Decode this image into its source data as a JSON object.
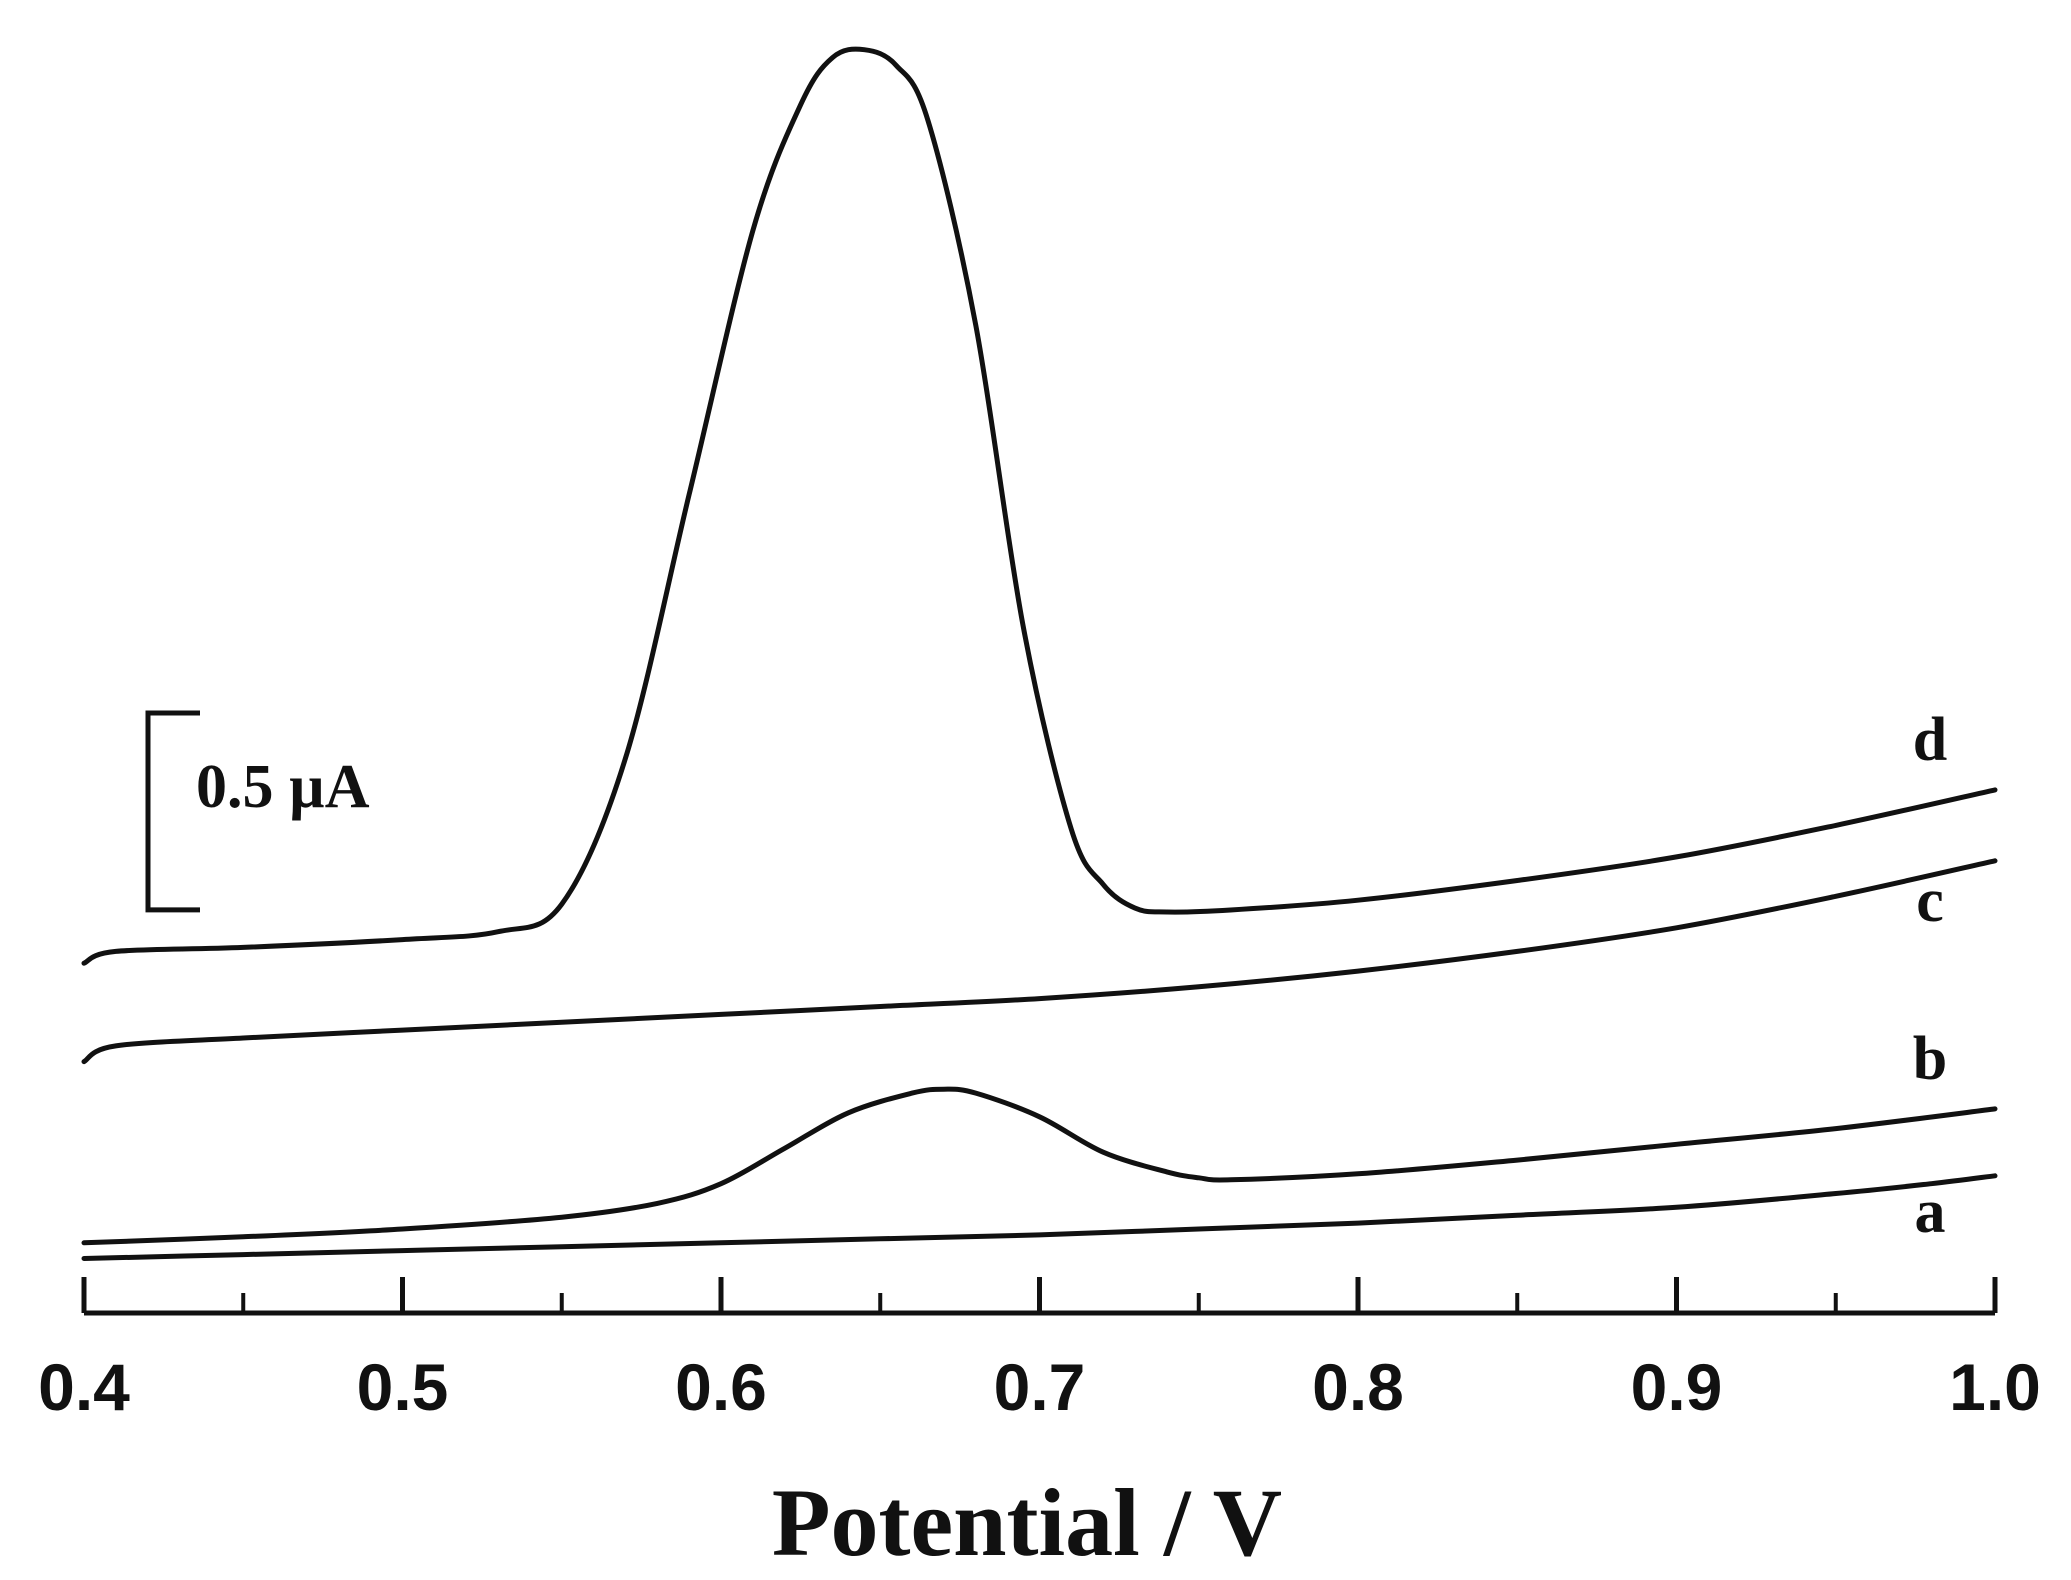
{
  "chart_data": {
    "type": "line",
    "xlabel": "Potential / V",
    "ylabel": "",
    "xlim": [
      0.4,
      1.0
    ],
    "x_ticks": [
      "0.4",
      "0.5",
      "0.6",
      "0.7",
      "0.8",
      "0.9",
      "1.0"
    ],
    "x_minor_ticks": [
      0.45,
      0.55,
      0.65,
      0.75,
      0.85,
      0.95
    ],
    "y_units": "µA (relative, offset curves)",
    "ylim": [
      0,
      3.2
    ],
    "grid": false,
    "legend": "none (inline curve labels at right end)",
    "scale_bar": {
      "value": 0.5,
      "label": "0.5 µA"
    },
    "series": [
      {
        "name": "a",
        "x": [
          0.4,
          0.45,
          0.5,
          0.55,
          0.6,
          0.65,
          0.7,
          0.75,
          0.8,
          0.85,
          0.9,
          0.95,
          0.98,
          1.0
        ],
        "y": [
          0.08,
          0.09,
          0.1,
          0.11,
          0.12,
          0.13,
          0.14,
          0.155,
          0.17,
          0.19,
          0.21,
          0.245,
          0.27,
          0.29
        ]
      },
      {
        "name": "b",
        "x": [
          0.4,
          0.45,
          0.5,
          0.55,
          0.58,
          0.6,
          0.62,
          0.64,
          0.66,
          0.67,
          0.68,
          0.7,
          0.72,
          0.74,
          0.75,
          0.76,
          0.8,
          0.85,
          0.9,
          0.95,
          1.0
        ],
        "y": [
          0.12,
          0.135,
          0.155,
          0.185,
          0.22,
          0.27,
          0.36,
          0.45,
          0.5,
          0.51,
          0.5,
          0.44,
          0.35,
          0.3,
          0.285,
          0.28,
          0.295,
          0.33,
          0.37,
          0.41,
          0.46
        ]
      },
      {
        "name": "c",
        "x": [
          0.4,
          0.41,
          0.45,
          0.5,
          0.55,
          0.6,
          0.65,
          0.7,
          0.75,
          0.8,
          0.85,
          0.9,
          0.95,
          1.0
        ],
        "y": [
          0.58,
          0.62,
          0.64,
          0.66,
          0.68,
          0.7,
          0.72,
          0.74,
          0.77,
          0.81,
          0.86,
          0.92,
          1.0,
          1.09
        ]
      },
      {
        "name": "d",
        "x": [
          0.4,
          0.41,
          0.45,
          0.5,
          0.53,
          0.55,
          0.57,
          0.59,
          0.61,
          0.625,
          0.635,
          0.645,
          0.655,
          0.665,
          0.68,
          0.695,
          0.71,
          0.72,
          0.73,
          0.74,
          0.76,
          0.8,
          0.85,
          0.9,
          0.95,
          1.0
        ],
        "y": [
          0.83,
          0.86,
          0.87,
          0.89,
          0.91,
          0.98,
          1.35,
          2.02,
          2.69,
          3.01,
          3.13,
          3.15,
          3.11,
          2.97,
          2.45,
          1.68,
          1.17,
          1.03,
          0.97,
          0.96,
          0.965,
          0.99,
          1.04,
          1.1,
          1.18,
          1.27
        ]
      }
    ]
  }
}
